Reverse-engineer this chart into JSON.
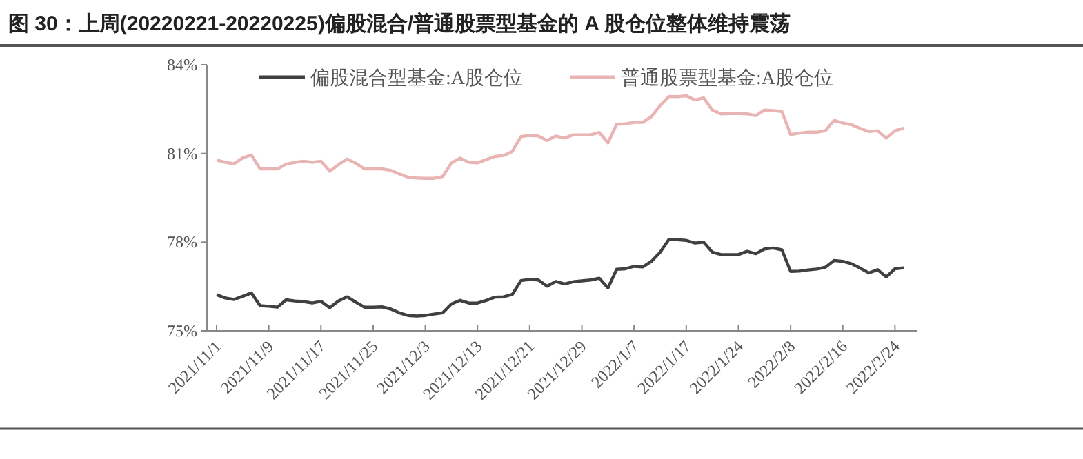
{
  "chart_data": {
    "type": "line",
    "title": "图 30：上周(20220221-20220225)偏股混合/普通股票型基金的 A 股仓位整体维持震荡",
    "categories": [
      "2021/11/1",
      null,
      null,
      null,
      null,
      null,
      "2021/11/9",
      null,
      null,
      null,
      null,
      null,
      "2021/11/17",
      null,
      null,
      null,
      null,
      null,
      "2021/11/25",
      null,
      null,
      null,
      null,
      null,
      "2021/12/3",
      null,
      null,
      null,
      null,
      null,
      "2021/12/13",
      null,
      null,
      null,
      null,
      null,
      "2021/12/21",
      null,
      null,
      null,
      null,
      null,
      "2021/12/29",
      null,
      null,
      null,
      null,
      null,
      "2022/1/7",
      null,
      null,
      null,
      null,
      null,
      "2022/1/17",
      null,
      null,
      null,
      null,
      null,
      "2022/1/24",
      null,
      null,
      null,
      null,
      null,
      "2022/2/8",
      null,
      null,
      null,
      null,
      null,
      "2022/2/16",
      null,
      null,
      null,
      null,
      null,
      "2022/2/24",
      null
    ],
    "series": [
      {
        "name": "偏股混合型基金:A股仓位",
        "color": "#404040",
        "values": [
          76.22,
          76.11,
          76.06,
          76.17,
          76.28,
          75.85,
          75.83,
          75.8,
          76.05,
          76.01,
          75.99,
          75.94,
          76.0,
          75.78,
          76.01,
          76.15,
          75.97,
          75.8,
          75.8,
          75.81,
          75.74,
          75.61,
          75.52,
          75.5,
          75.52,
          75.57,
          75.61,
          75.91,
          76.03,
          75.94,
          75.94,
          76.03,
          76.14,
          76.15,
          76.23,
          76.7,
          76.74,
          76.72,
          76.51,
          76.67,
          76.59,
          76.66,
          76.69,
          76.72,
          76.78,
          76.45,
          77.08,
          77.1,
          77.18,
          77.16,
          77.35,
          77.66,
          78.09,
          78.08,
          78.06,
          77.97,
          78.0,
          77.66,
          77.58,
          77.58,
          77.58,
          77.69,
          77.61,
          77.77,
          77.8,
          77.74,
          77.01,
          77.02,
          77.06,
          77.09,
          77.15,
          77.38,
          77.35,
          77.27,
          77.12,
          76.96,
          77.07,
          76.82,
          77.1,
          77.13
        ]
      },
      {
        "name": "普通股票型基金:A股仓位",
        "color": "#e8b4b4",
        "values": [
          80.78,
          80.7,
          80.65,
          80.85,
          80.95,
          80.48,
          80.48,
          80.48,
          80.64,
          80.7,
          80.74,
          80.7,
          80.74,
          80.4,
          80.62,
          80.81,
          80.67,
          80.48,
          80.48,
          80.48,
          80.43,
          80.31,
          80.2,
          80.17,
          80.16,
          80.16,
          80.22,
          80.68,
          80.84,
          80.7,
          80.68,
          80.79,
          80.9,
          80.93,
          81.07,
          81.57,
          81.61,
          81.59,
          81.44,
          81.59,
          81.52,
          81.63,
          81.63,
          81.63,
          81.71,
          81.36,
          81.99,
          82.0,
          82.05,
          82.05,
          82.25,
          82.62,
          82.93,
          82.92,
          82.95,
          82.81,
          82.88,
          82.47,
          82.34,
          82.35,
          82.35,
          82.34,
          82.28,
          82.47,
          82.45,
          82.42,
          81.64,
          81.69,
          81.72,
          81.72,
          81.77,
          82.12,
          82.03,
          81.97,
          81.85,
          81.74,
          81.77,
          81.52,
          81.77,
          81.86
        ]
      }
    ],
    "ylim": [
      75,
      84
    ],
    "yticks": [
      {
        "value": 75,
        "label": "75%"
      },
      {
        "value": 78,
        "label": "78%"
      },
      {
        "value": 81,
        "label": "81%"
      },
      {
        "value": 84,
        "label": "84%"
      }
    ],
    "legend": "top",
    "grid": false
  }
}
